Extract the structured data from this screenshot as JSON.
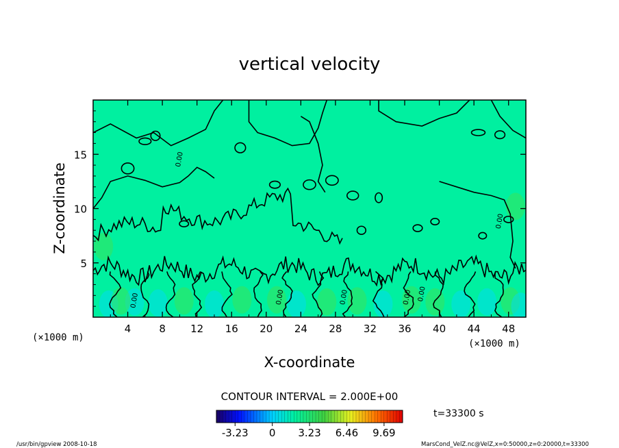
{
  "chart_data": {
    "type": "heatmap",
    "title": "vertical velocity",
    "xlabel": "X-coordinate",
    "ylabel": "Z-coordinate",
    "x_unit": "(×1000 m)",
    "x_unit_right": "(×1000 m)",
    "xlim": [
      0,
      50
    ],
    "ylim": [
      0,
      20
    ],
    "xticks": [
      4,
      8,
      12,
      16,
      20,
      24,
      28,
      32,
      36,
      40,
      44,
      48
    ],
    "yticks": [
      5,
      10,
      15
    ],
    "contour_interval_text": "CONTOUR INTERVAL = 2.000E+00",
    "contour_labels": [
      "0.00",
      "0.00",
      "0.00",
      "0.00",
      "0.00",
      "0.00",
      "0.00"
    ],
    "colorbar": {
      "ticks": [
        "-3.23",
        "0",
        "3.23",
        "6.46",
        "9.69"
      ],
      "values": [
        -3.23,
        0,
        3.23,
        6.46,
        9.69
      ],
      "range": [
        -4.85,
        11.3
      ]
    },
    "time_text": "t=33300 s",
    "footer_left": "/usr/bin/gpview  2008-10-18",
    "footer_right": "MarsCond_VelZ.nc@VelZ,x=0:50000,z=0:20000,t=33300",
    "colors": {
      "background": "#00f0a0",
      "positive": "#44e04a",
      "negative": "#00d8ff",
      "contour": "#000000"
    }
  }
}
